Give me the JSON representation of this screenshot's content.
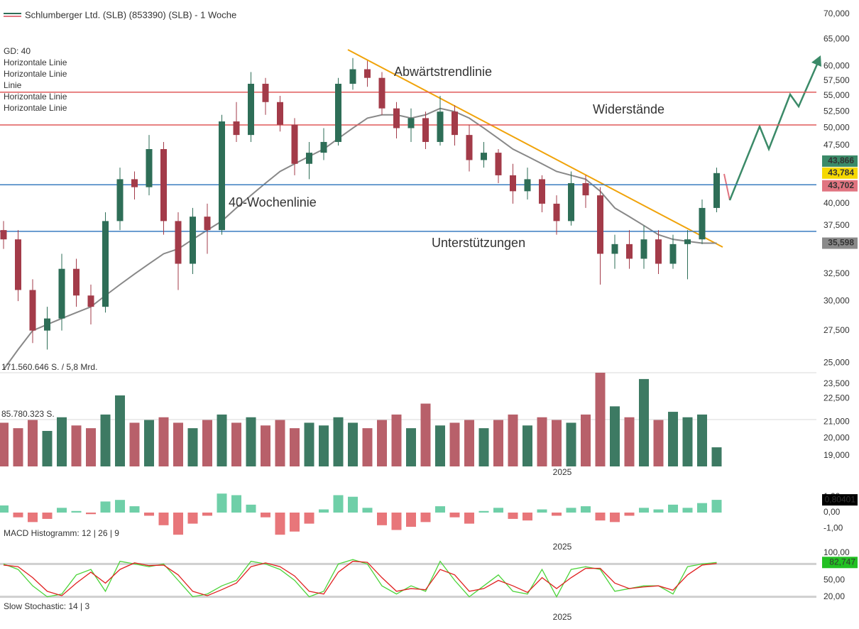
{
  "chart_data": [
    {
      "type": "candlestick",
      "title": "Schlumberger Ltd. (SLB) (853390) (SLB) - 1 Woche",
      "log_scale": true,
      "up_color": "#2e6e57",
      "down_color": "#a33b49",
      "period_label": "2025",
      "ylim": [
        19000,
        70000
      ],
      "yticks": [
        {
          "value": 70000,
          "label": "70,000"
        },
        {
          "value": 65000,
          "label": "65,000"
        },
        {
          "value": 60000,
          "label": "60,000"
        },
        {
          "value": 57500,
          "label": "57,500"
        },
        {
          "value": 55000,
          "label": "55,000"
        },
        {
          "value": 52500,
          "label": "52,500"
        },
        {
          "value": 50000,
          "label": "50,000"
        },
        {
          "value": 47500,
          "label": "47,500"
        },
        {
          "value": 40000,
          "label": "40,000"
        },
        {
          "value": 37500,
          "label": "37,500"
        },
        {
          "value": 32500,
          "label": "32,500"
        },
        {
          "value": 30000,
          "label": "30,000"
        },
        {
          "value": 27500,
          "label": "27,500"
        },
        {
          "value": 25000,
          "label": "25,000"
        },
        {
          "value": 23500,
          "label": "23,500"
        },
        {
          "value": 22500,
          "label": "22,500"
        },
        {
          "value": 21000,
          "label": "21,000"
        },
        {
          "value": 20000,
          "label": "20,000"
        },
        {
          "value": 19000,
          "label": "19,000"
        }
      ],
      "open": [
        37000,
        36000,
        31000,
        27500,
        28500,
        33000,
        30500,
        29500,
        38000,
        43000,
        42000,
        47000,
        38000,
        33500,
        38500,
        37000,
        51000,
        49000,
        57000,
        54000,
        50500,
        45000,
        46500,
        48000,
        57000,
        59500,
        58000,
        53000,
        50000,
        51500,
        48000,
        52500,
        49000,
        45500,
        46500,
        43500,
        41500,
        43000,
        40000,
        38000,
        42500,
        41000,
        34500,
        35500,
        34000,
        36000,
        33500,
        35500,
        36000,
        39500
      ],
      "high": [
        38000,
        37000,
        32000,
        29500,
        34500,
        34000,
        31500,
        39000,
        44500,
        44000,
        49000,
        48000,
        39000,
        39500,
        40000,
        52000,
        54000,
        59000,
        58000,
        55000,
        51500,
        48000,
        50000,
        58000,
        61500,
        61000,
        59000,
        54000,
        53000,
        52500,
        55000,
        53500,
        50500,
        48000,
        47000,
        45000,
        44500,
        43500,
        41000,
        44000,
        43500,
        42000,
        36500,
        37000,
        37500,
        37000,
        36500,
        37000,
        40500,
        44500
      ],
      "low": [
        35000,
        30000,
        26500,
        26000,
        27500,
        29500,
        28000,
        29000,
        37000,
        40500,
        41000,
        36500,
        31000,
        32500,
        34500,
        36500,
        48000,
        48000,
        52000,
        49500,
        43500,
        43000,
        45500,
        47500,
        56000,
        56500,
        52000,
        48500,
        48000,
        47000,
        47500,
        47500,
        44000,
        44500,
        42500,
        40000,
        40500,
        39000,
        36500,
        37500,
        39500,
        31500,
        33000,
        33000,
        33000,
        32500,
        33000,
        32000,
        35500,
        39000
      ],
      "close": [
        36000,
        31000,
        27500,
        28500,
        33000,
        30500,
        29500,
        38000,
        43000,
        42000,
        47000,
        38000,
        33500,
        38500,
        37000,
        51000,
        49000,
        57000,
        54000,
        50500,
        45000,
        46500,
        48000,
        57000,
        59500,
        58000,
        53000,
        50000,
        51500,
        48000,
        52500,
        49000,
        45500,
        46500,
        43500,
        41500,
        43000,
        40000,
        38000,
        42500,
        41000,
        34500,
        35500,
        34000,
        36000,
        33500,
        35500,
        36000,
        39500,
        43784
      ],
      "indicators": [
        {
          "name": "GD: 40",
          "color": "#888888",
          "values": [
            24500,
            26000,
            27500,
            28000,
            28500,
            29000,
            29500,
            30500,
            31500,
            32500,
            33500,
            34500,
            35000,
            36000,
            37000,
            38000,
            39500,
            41000,
            42500,
            44000,
            45000,
            46000,
            47000,
            48500,
            50000,
            51500,
            52000,
            52000,
            51500,
            52000,
            53000,
            52500,
            51500,
            50000,
            48500,
            47000,
            46000,
            45000,
            44000,
            43500,
            43000,
            41500,
            39500,
            38500,
            37500,
            36500,
            36000,
            35800,
            35600,
            35598
          ]
        },
        {
          "name": "Horizontale Linie",
          "color": "#3a7cc0",
          "value": 42300
        },
        {
          "name": "Horizontale Linie",
          "color": "#3a7cc0",
          "value": 36860
        },
        {
          "name": "Linie",
          "color": "#f0a30a"
        },
        {
          "name": "Horizontale Linie",
          "color": "#e05a5a",
          "value": 55600
        },
        {
          "name": "Horizontale Linie",
          "color": "#e05a5a",
          "value": 50470
        }
      ],
      "annotations": [
        {
          "text": "Abwärtstrendlinie",
          "color": "#f0a30a"
        },
        {
          "text": "Widerstände",
          "color": "#e05a5a"
        },
        {
          "text": "40-Wochenlinie",
          "color": "#888888"
        },
        {
          "text": "Unterstützungen",
          "color": "#3a7cc0"
        }
      ],
      "price_labels": [
        {
          "value": 43866,
          "label": "43,866",
          "color": "#3b8a68"
        },
        {
          "value": 43784,
          "label": "43,784",
          "color": "#f5d800"
        },
        {
          "value": 43702,
          "label": "43,702",
          "color": "#e07480"
        },
        {
          "value": 35598,
          "label": "35,598",
          "color": "#8a8a8a"
        }
      ]
    },
    {
      "type": "bar",
      "period_label": "2025",
      "ylim": [
        0,
        171560646
      ],
      "yticks": [
        {
          "value": 171560646,
          "label": "171.560.646 S. / 5,8 Mrd."
        },
        {
          "value": 85780323,
          "label": "85.780.323 S."
        }
      ],
      "up_color": "#3d7a63",
      "down_color": "#b8606a",
      "values": [
        80000000,
        70000000,
        85000000,
        65000000,
        90000000,
        75000000,
        70000000,
        95000000,
        130000000,
        80000000,
        85000000,
        90000000,
        80000000,
        70000000,
        85000000,
        95000000,
        80000000,
        90000000,
        75000000,
        85000000,
        70000000,
        80000000,
        75000000,
        90000000,
        80000000,
        70000000,
        85000000,
        95000000,
        70000000,
        115000000,
        75000000,
        80000000,
        85000000,
        70000000,
        85000000,
        95000000,
        75000000,
        90000000,
        85000000,
        80000000,
        95000000,
        171560646,
        110000000,
        90000000,
        160000000,
        85000000,
        100000000,
        90000000,
        95000000,
        35000000
      ]
    },
    {
      "type": "histogram_bars",
      "name": "MACD Histogramm: 12 | 26 | 9",
      "period_label": "2025",
      "ylim": [
        -1.75,
        1.75
      ],
      "yticks": [
        {
          "value": 1,
          "label": "1,00"
        },
        {
          "value": 0,
          "label": "0,00"
        },
        {
          "value": -1,
          "label": "-1,00"
        }
      ],
      "up_color": "#6fcfa8",
      "down_color": "#e8767a",
      "last_value_label": "0,80401",
      "values": [
        0.45,
        -0.3,
        -0.6,
        -0.4,
        0.3,
        0.1,
        -0.1,
        0.7,
        0.8,
        0.4,
        -0.2,
        -0.8,
        -1.4,
        -0.7,
        -0.2,
        1.2,
        1.1,
        0.5,
        -0.3,
        -1.4,
        -1.2,
        -0.7,
        0.2,
        1.1,
        1.0,
        0.3,
        -0.8,
        -1.1,
        -0.9,
        -0.6,
        0.4,
        -0.3,
        -0.7,
        0.1,
        0.3,
        -0.4,
        -0.5,
        0.2,
        -0.2,
        0.3,
        0.4,
        -0.5,
        -0.6,
        -0.2,
        0.3,
        0.2,
        0.5,
        0.3,
        0.6,
        0.80401
      ]
    },
    {
      "type": "line",
      "name": "Slow Stochastic: 14 | 3",
      "period_label": "2025",
      "ylim": [
        0,
        100
      ],
      "yticks": [
        {
          "value": 100,
          "label": "100,00"
        },
        {
          "value": 50,
          "label": "50,00"
        },
        {
          "value": 20,
          "label": "20,00"
        }
      ],
      "bands": [
        80,
        20
      ],
      "last_value_label": "82,747",
      "label_color": "#22c022",
      "series": [
        {
          "color": "#4cd43a",
          "values": [
            80,
            70,
            40,
            20,
            25,
            60,
            70,
            30,
            85,
            80,
            75,
            80,
            50,
            20,
            25,
            40,
            50,
            85,
            80,
            70,
            50,
            20,
            30,
            80,
            88,
            80,
            40,
            25,
            40,
            30,
            85,
            50,
            20,
            40,
            60,
            30,
            25,
            70,
            20,
            70,
            75,
            70,
            30,
            35,
            40,
            40,
            25,
            75,
            80,
            82.747
          ]
        },
        {
          "color": "#e02020",
          "values": [
            78,
            75,
            55,
            30,
            22,
            45,
            65,
            45,
            70,
            82,
            77,
            78,
            60,
            30,
            22,
            33,
            45,
            75,
            82,
            75,
            58,
            30,
            25,
            65,
            85,
            83,
            55,
            30,
            35,
            33,
            70,
            60,
            30,
            35,
            50,
            40,
            28,
            55,
            35,
            55,
            72,
            72,
            45,
            35,
            38,
            40,
            32,
            60,
            78,
            81
          ]
        }
      ]
    }
  ]
}
